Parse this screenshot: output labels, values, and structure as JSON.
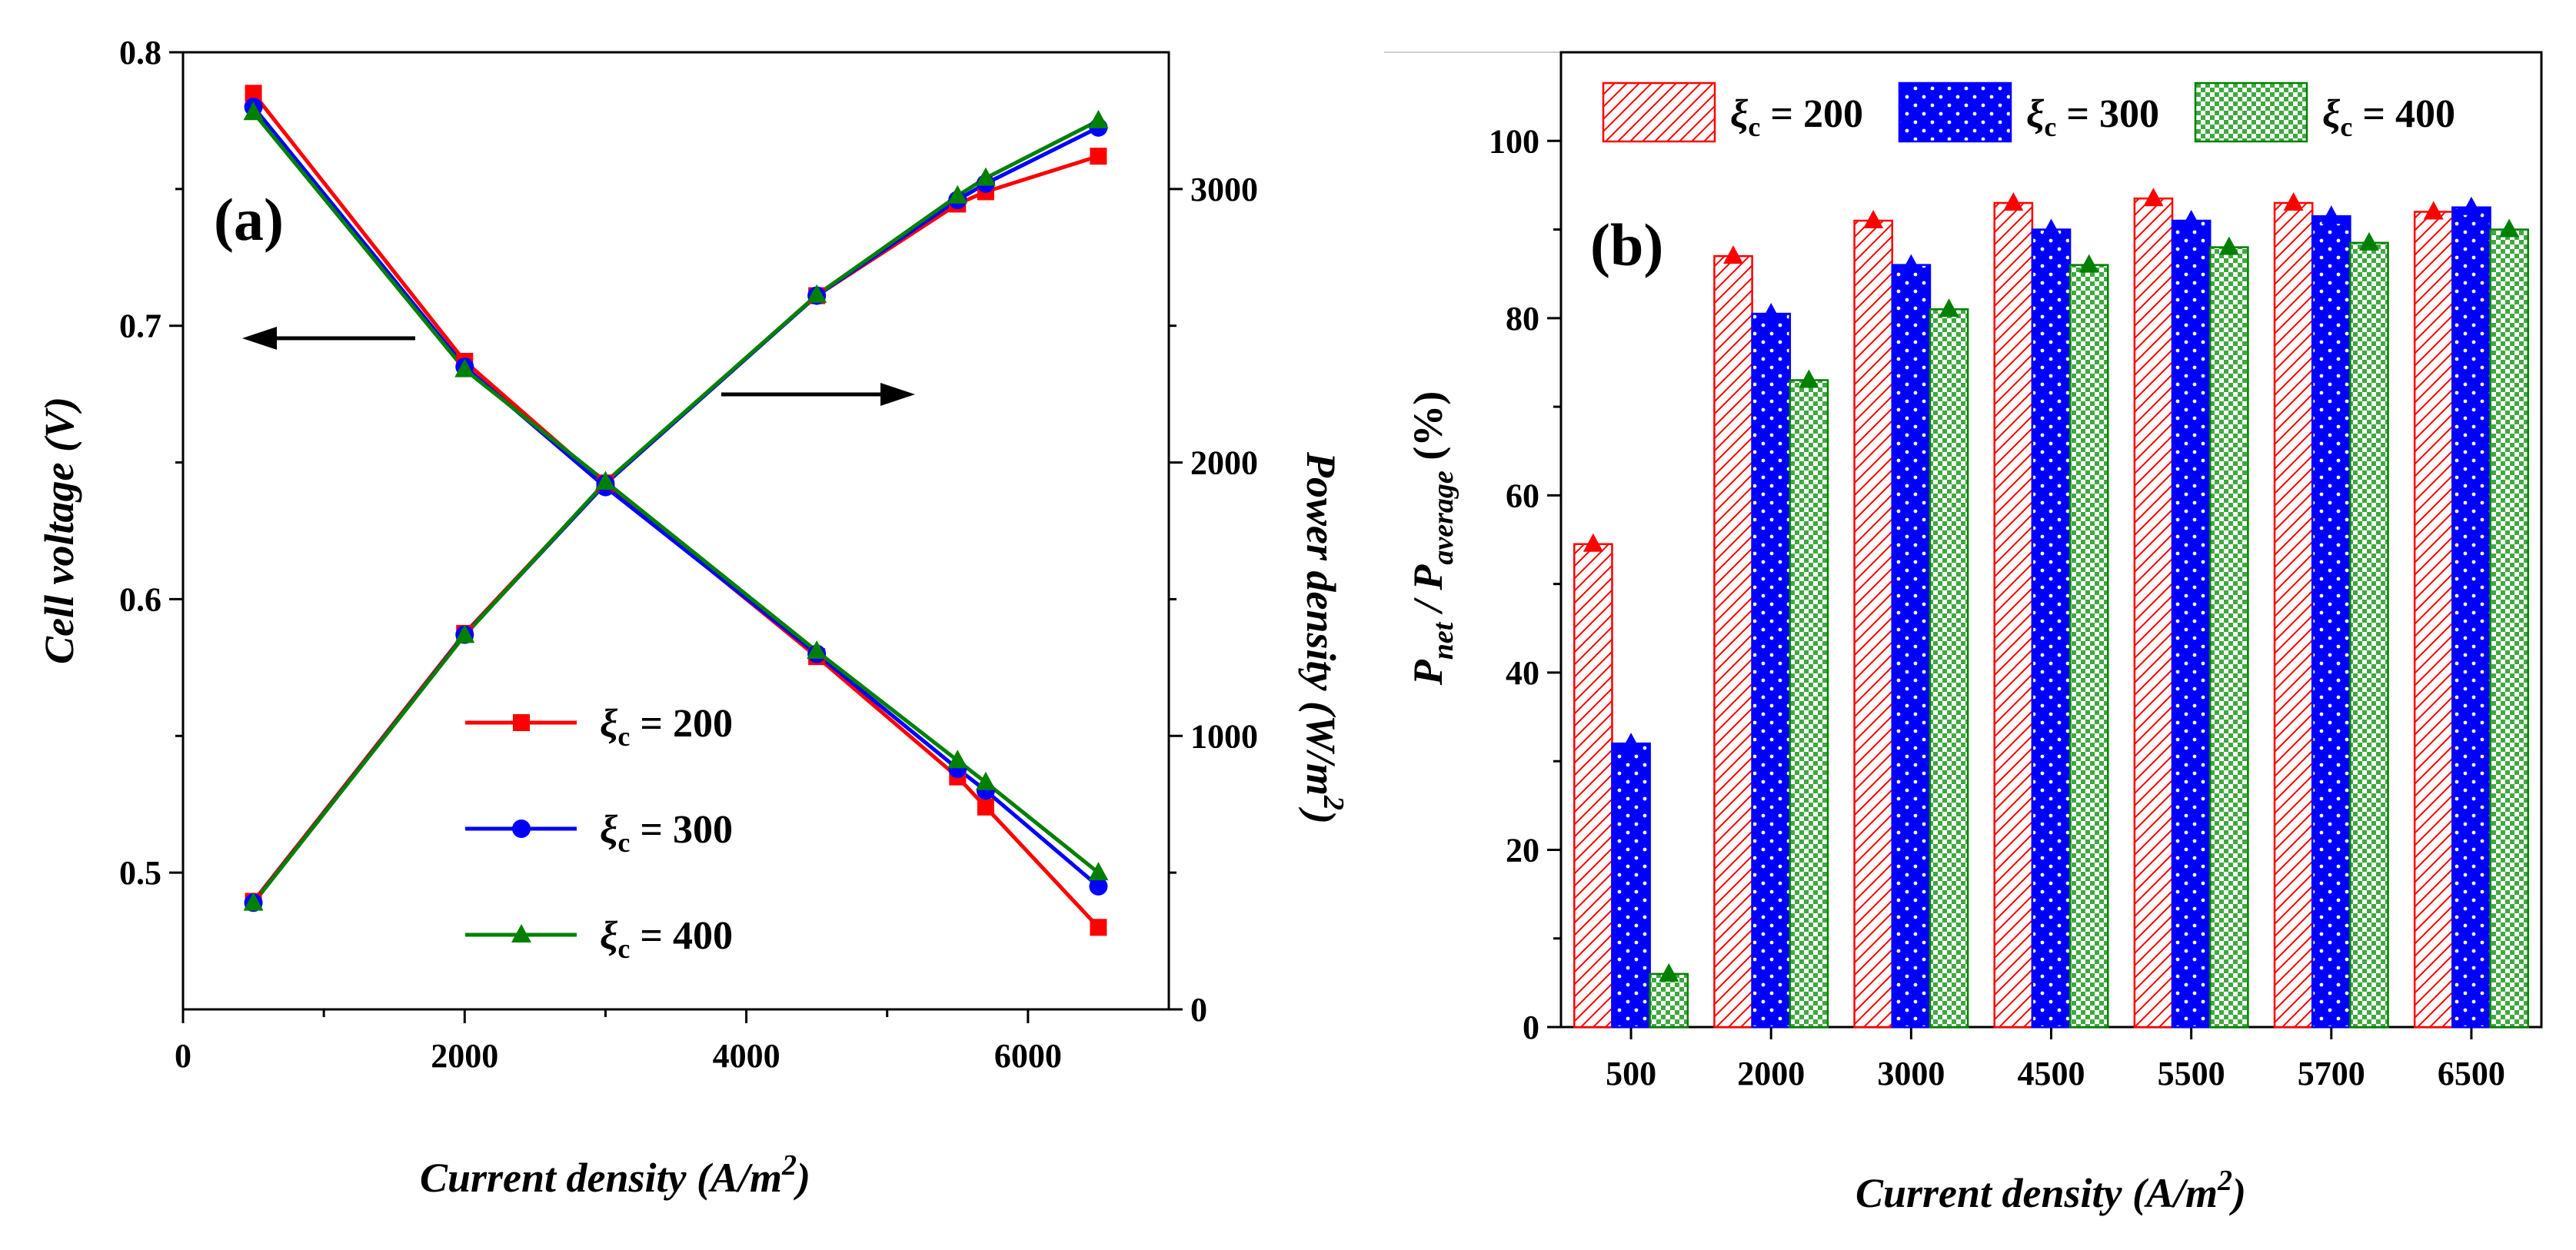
{
  "chart_data": [
    {
      "type": "line",
      "panel_label": "(a)",
      "xlabel": "Current density (A/m2)",
      "x_ticks": [
        "0",
        "2000",
        "4000",
        "6000"
      ],
      "xlim": [
        0,
        7000
      ],
      "ylabel": "Cell voltage (V)",
      "ylim": [
        0.45,
        0.8
      ],
      "y_ticks": [
        "0.5",
        "0.6",
        "0.7",
        "0.8"
      ],
      "y2label": "Power density (W/m2)",
      "y2lim": [
        0,
        3500
      ],
      "y2_ticks": [
        "0",
        "1000",
        "2000",
        "3000"
      ],
      "x": [
        500,
        2000,
        3000,
        4500,
        5500,
        5700,
        6500
      ],
      "series": [
        {
          "name": "ξc = 200",
          "axis": "left",
          "color": "#ff0000",
          "marker": "square",
          "values": [
            0.785,
            0.687,
            0.642,
            0.579,
            0.535,
            0.524,
            0.48
          ]
        },
        {
          "name": "ξc = 300",
          "axis": "left",
          "color": "#0000ff",
          "marker": "circle",
          "values": [
            0.78,
            0.685,
            0.641,
            0.58,
            0.538,
            0.53,
            0.495
          ]
        },
        {
          "name": "ξc = 400",
          "axis": "left",
          "color": "#008000",
          "marker": "triangle",
          "values": [
            0.778,
            0.684,
            0.643,
            0.581,
            0.541,
            0.533,
            0.5
          ]
        },
        {
          "name": "ξc = 200",
          "axis": "right",
          "color": "#ff0000",
          "marker": "square",
          "values": [
            395,
            1375,
            1925,
            2610,
            2945,
            2990,
            3120
          ]
        },
        {
          "name": "ξc = 300",
          "axis": "right",
          "color": "#0000ff",
          "marker": "circle",
          "values": [
            390,
            1370,
            1922,
            2610,
            2960,
            3020,
            3225
          ]
        },
        {
          "name": "ξc = 400",
          "axis": "right",
          "color": "#008000",
          "marker": "triangle",
          "values": [
            389,
            1368,
            1928,
            2612,
            2975,
            3040,
            3250
          ]
        }
      ],
      "legend": {
        "position": "lower-center",
        "items": [
          {
            "symbol": "ξ",
            "sub": "c",
            "rest": " = 200",
            "color": "#ff0000",
            "marker": "square"
          },
          {
            "symbol": "ξ",
            "sub": "c",
            "rest": " = 300",
            "color": "#0000ff",
            "marker": "circle"
          },
          {
            "symbol": "ξ",
            "sub": "c",
            "rest": " = 400",
            "color": "#008000",
            "marker": "triangle"
          }
        ]
      }
    },
    {
      "type": "bar",
      "panel_label": "(b)",
      "xlabel": "Current density (A/m2)",
      "ylabel": "Pnet / Paverage (%)",
      "ylim": [
        0,
        110
      ],
      "y_ticks": [
        "0",
        "20",
        "40",
        "60",
        "80",
        "100"
      ],
      "categories": [
        "500",
        "2000",
        "3000",
        "4500",
        "5500",
        "5700",
        "6500"
      ],
      "series": [
        {
          "name": "ξc = 200",
          "color": "#ff0000",
          "pattern": "hatch",
          "values": [
            54.5,
            87,
            91,
            93,
            93.5,
            93,
            92
          ]
        },
        {
          "name": "ξc = 300",
          "color": "#0000ff",
          "pattern": "dots",
          "values": [
            32,
            80.5,
            86,
            90,
            91,
            91.5,
            92.5
          ]
        },
        {
          "name": "ξc = 400",
          "color": "#008000",
          "pattern": "checker",
          "values": [
            6,
            73,
            81,
            86,
            88,
            88.5,
            90
          ]
        }
      ],
      "legend": {
        "position": "top",
        "items": [
          {
            "symbol": "ξ",
            "sub": "c",
            "rest": " = 200"
          },
          {
            "symbol": "ξ",
            "sub": "c",
            "rest": " = 300"
          },
          {
            "symbol": "ξ",
            "sub": "c",
            "rest": " = 400"
          }
        ]
      }
    }
  ]
}
